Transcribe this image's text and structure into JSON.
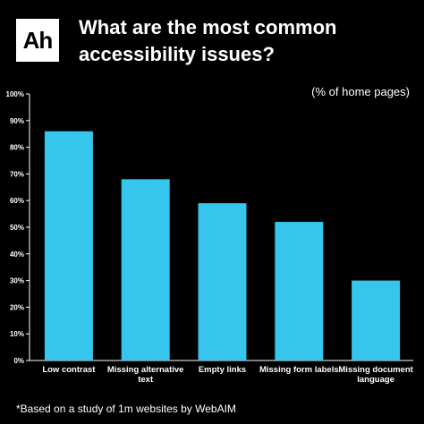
{
  "brand": {
    "logo_text": "Ah"
  },
  "header": {
    "title": "What are the most common accessibility issues?"
  },
  "unit_note": "(% of home pages)",
  "footnote": "*Based on a study of 1m websites by WebAIM",
  "colors": {
    "bar": "#36C5EC",
    "background": "#000000",
    "text": "#FFFFFF"
  },
  "chart_data": {
    "type": "bar",
    "title": "What are the most common accessibility issues?",
    "subtitle": "(% of home pages)",
    "categories": [
      [
        "Low contrast"
      ],
      [
        "Missing alternative",
        "text"
      ],
      [
        "Empty links"
      ],
      [
        "Missing form labels"
      ],
      [
        "Missing document",
        "language"
      ]
    ],
    "values": [
      86,
      68,
      59,
      52,
      30
    ],
    "yticks": [
      "0%",
      "10%",
      "20%",
      "30%",
      "40%",
      "50%",
      "60%",
      "70%",
      "80%",
      "90%",
      "100%"
    ],
    "ylim": [
      0,
      100
    ],
    "grid": false,
    "legend": "none"
  }
}
